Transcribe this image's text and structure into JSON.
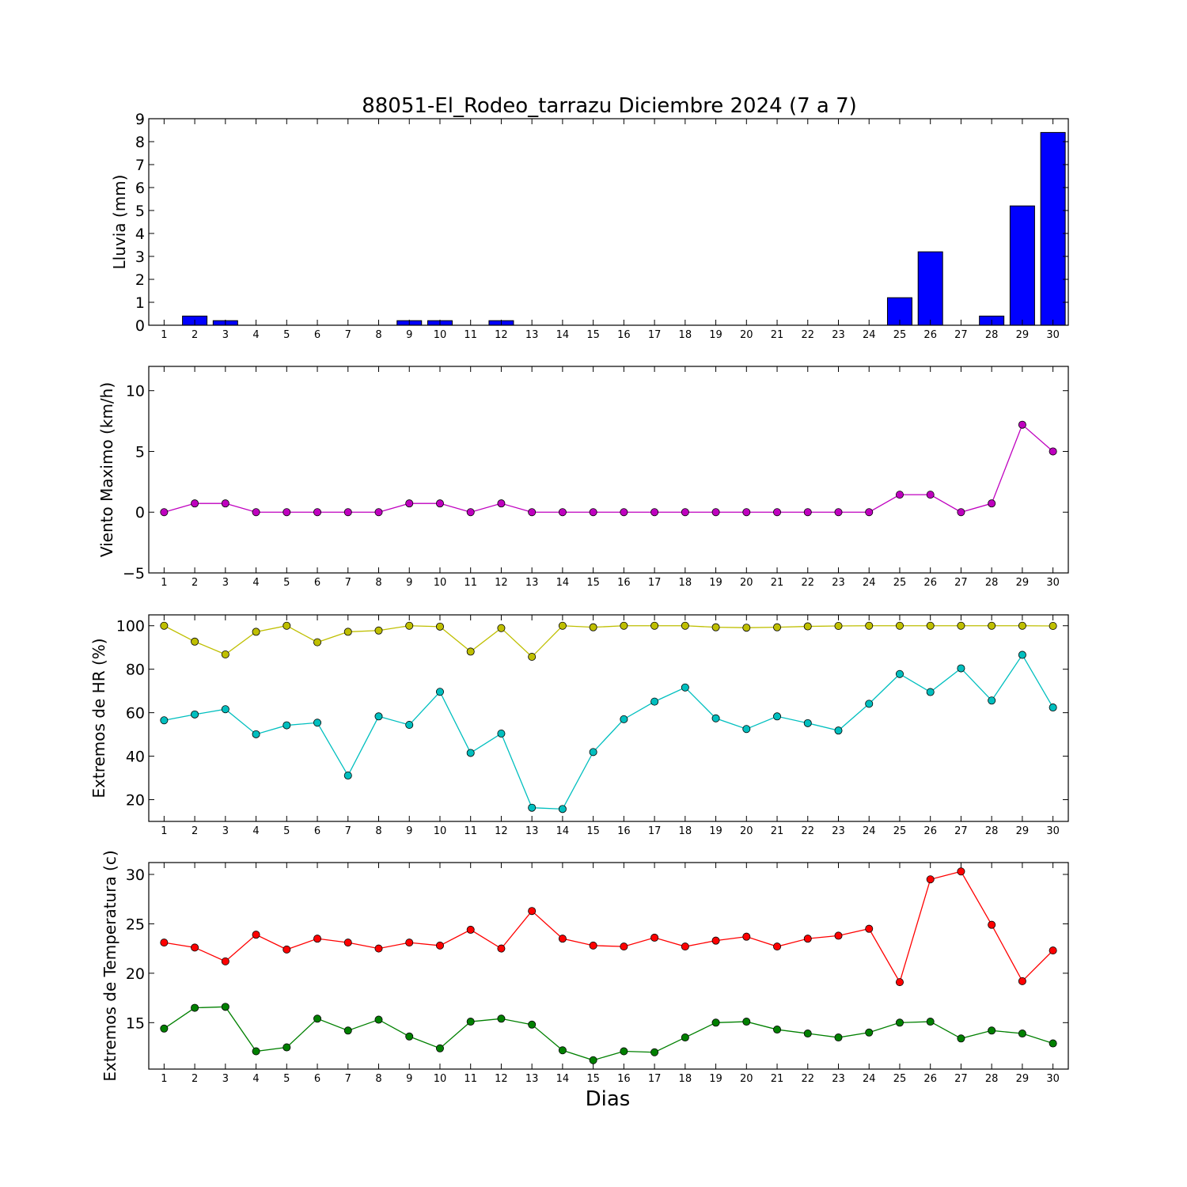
{
  "figure": {
    "title": "88051-El_Rodeo_tarrazu Diciembre 2024  (7 a 7)",
    "xlabel": "Dias"
  },
  "chart_data": [
    {
      "type": "bar",
      "ylabel": "Lluvia (mm)",
      "categories": [
        "1",
        "2",
        "3",
        "4",
        "5",
        "6",
        "7",
        "8",
        "9",
        "10",
        "11",
        "12",
        "13",
        "14",
        "15",
        "16",
        "17",
        "18",
        "19",
        "20",
        "21",
        "22",
        "23",
        "24",
        "25",
        "26",
        "27",
        "28",
        "29",
        "30"
      ],
      "ylim": [
        0,
        9
      ],
      "yticks": [
        "0",
        "1",
        "2",
        "3",
        "4",
        "5",
        "6",
        "7",
        "8",
        "9"
      ],
      "color": "#0000ff",
      "values": [
        0,
        0.4,
        0.2,
        0,
        0,
        0,
        0,
        0,
        0.2,
        0.2,
        0,
        0.2,
        0,
        0,
        0,
        0,
        0,
        0,
        0,
        0,
        0,
        0,
        0,
        0,
        1.2,
        3.2,
        0,
        0.4,
        5.2,
        8.4
      ]
    },
    {
      "type": "line",
      "ylabel": "Viento Maximo (km/h)",
      "categories": [
        "1",
        "2",
        "3",
        "4",
        "5",
        "6",
        "7",
        "8",
        "9",
        "10",
        "11",
        "12",
        "13",
        "14",
        "15",
        "16",
        "17",
        "18",
        "19",
        "20",
        "21",
        "22",
        "23",
        "24",
        "25",
        "26",
        "27",
        "28",
        "29",
        "30"
      ],
      "ylim": [
        -5,
        12
      ],
      "yticks": [
        "−5",
        "0",
        "5",
        "10"
      ],
      "series": [
        {
          "color": "#bf00bf",
          "values": [
            0,
            0.72,
            0.72,
            0,
            0,
            0,
            0,
            0,
            0.72,
            0.72,
            0,
            0.72,
            0,
            0,
            0,
            0,
            0,
            0,
            0,
            0,
            0,
            0,
            0,
            0,
            1.44,
            1.44,
            0,
            0.72,
            7.2,
            5.0
          ]
        }
      ]
    },
    {
      "type": "line",
      "ylabel": "Extremos de HR (%)",
      "categories": [
        "1",
        "2",
        "3",
        "4",
        "5",
        "6",
        "7",
        "8",
        "9",
        "10",
        "11",
        "12",
        "13",
        "14",
        "15",
        "16",
        "17",
        "18",
        "19",
        "20",
        "21",
        "22",
        "23",
        "24",
        "25",
        "26",
        "27",
        "28",
        "29",
        "30"
      ],
      "ylim": [
        10,
        105
      ],
      "yticks": [
        "20",
        "40",
        "60",
        "80",
        "100"
      ],
      "series": [
        {
          "color": "#bfbf00",
          "values": [
            100,
            92.7,
            86.8,
            97.2,
            100,
            92.4,
            97.2,
            97.8,
            100,
            99.6,
            88.1,
            98.9,
            85.7,
            100,
            99.3,
            100,
            100,
            100,
            99.3,
            99.1,
            99.3,
            99.7,
            99.9,
            100,
            100,
            100,
            100,
            100,
            100,
            99.9
          ]
        },
        {
          "color": "#00bfbf",
          "values": [
            56.5,
            59.2,
            61.6,
            50.1,
            54.2,
            55.4,
            31.1,
            58.3,
            54.4,
            69.6,
            41.5,
            50.4,
            16.3,
            15.7,
            41.9,
            57,
            65.1,
            71.6,
            57.4,
            52.5,
            58.3,
            55.2,
            51.8,
            64.1,
            77.8,
            69.5,
            80.4,
            65.6,
            86.6,
            62.4
          ]
        }
      ]
    },
    {
      "type": "line",
      "ylabel": "Extremos de Temperatura (c)",
      "categories": [
        "1",
        "2",
        "3",
        "4",
        "5",
        "6",
        "7",
        "8",
        "9",
        "10",
        "11",
        "12",
        "13",
        "14",
        "15",
        "16",
        "17",
        "18",
        "19",
        "20",
        "21",
        "22",
        "23",
        "24",
        "25",
        "26",
        "27",
        "28",
        "29",
        "30"
      ],
      "ylim": [
        10.3,
        31.2
      ],
      "yticks": [
        "15",
        "20",
        "25",
        "30"
      ],
      "series": [
        {
          "color": "#ff0000",
          "values": [
            23.1,
            22.6,
            21.2,
            23.9,
            22.4,
            23.5,
            23.1,
            22.5,
            23.1,
            22.8,
            24.4,
            22.5,
            26.3,
            23.5,
            22.8,
            22.7,
            23.6,
            22.7,
            23.3,
            23.7,
            22.7,
            23.5,
            23.8,
            24.5,
            19.1,
            29.5,
            30.3,
            24.9,
            19.2,
            22.3
          ]
        },
        {
          "color": "#008000",
          "values": [
            14.4,
            16.5,
            16.6,
            12.1,
            12.5,
            15.4,
            14.2,
            15.3,
            13.6,
            12.4,
            15.1,
            15.4,
            14.8,
            12.2,
            11.2,
            12.1,
            12,
            13.5,
            15,
            15.1,
            14.3,
            13.9,
            13.5,
            14,
            15,
            15.1,
            13.4,
            14.2,
            13.9,
            12.9
          ]
        }
      ]
    }
  ]
}
